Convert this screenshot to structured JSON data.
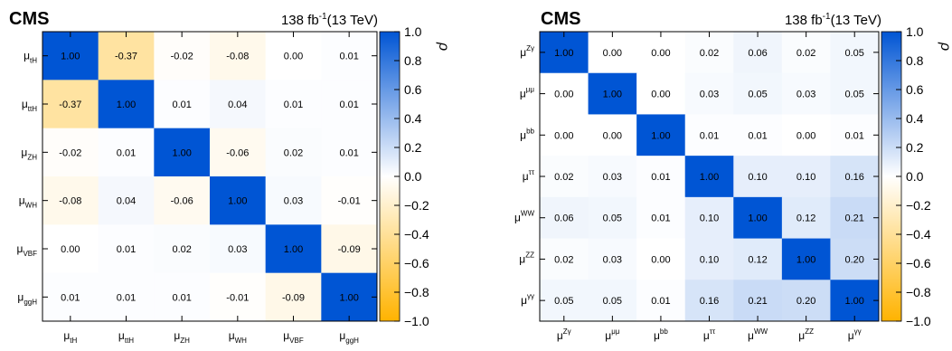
{
  "colors": {
    "positive": "#0055d4",
    "neutral": "#ffffff",
    "negative": "#ffb300",
    "frame": "#000000"
  },
  "chart_data": [
    {
      "type": "heatmap",
      "title": "CMS",
      "luminosity": "138 fb",
      "luminosity_exp": "-1",
      "energy": "(13 TeV)",
      "colorbar_label": "ρ",
      "zlim": [
        -1.0,
        1.0
      ],
      "colorbar_ticks": [
        "1.0",
        "0.8",
        "0.6",
        "0.4",
        "0.2",
        "0.0",
        "−0.2",
        "−0.4",
        "−0.6",
        "−0.8",
        "−1.0"
      ],
      "row_labels": [
        {
          "base": "μ",
          "sub": "tH",
          "sup": ""
        },
        {
          "base": "μ",
          "sub": "ttH",
          "sup": ""
        },
        {
          "base": "μ",
          "sub": "ZH",
          "sup": ""
        },
        {
          "base": "μ",
          "sub": "WH",
          "sup": ""
        },
        {
          "base": "μ",
          "sub": "VBF",
          "sup": ""
        },
        {
          "base": "μ",
          "sub": "ggH",
          "sup": ""
        }
      ],
      "col_labels": [
        {
          "base": "μ",
          "sub": "tH",
          "sup": ""
        },
        {
          "base": "μ",
          "sub": "ttH",
          "sup": ""
        },
        {
          "base": "μ",
          "sub": "ZH",
          "sup": ""
        },
        {
          "base": "μ",
          "sub": "WH",
          "sup": ""
        },
        {
          "base": "μ",
          "sub": "VBF",
          "sup": ""
        },
        {
          "base": "μ",
          "sub": "ggH",
          "sup": ""
        }
      ],
      "values": [
        [
          1.0,
          -0.37,
          -0.02,
          -0.08,
          0.0,
          0.01
        ],
        [
          -0.37,
          1.0,
          0.01,
          0.04,
          0.01,
          0.01
        ],
        [
          -0.02,
          0.01,
          1.0,
          -0.06,
          0.02,
          0.01
        ],
        [
          -0.08,
          0.04,
          -0.06,
          1.0,
          0.03,
          -0.01
        ],
        [
          0.0,
          0.01,
          0.02,
          0.03,
          1.0,
          -0.09
        ],
        [
          0.01,
          0.01,
          0.01,
          -0.01,
          -0.09,
          1.0
        ]
      ]
    },
    {
      "type": "heatmap",
      "title": "CMS",
      "luminosity": "138 fb",
      "luminosity_exp": "-1",
      "energy": "(13 TeV)",
      "colorbar_label": "ρ",
      "zlim": [
        -1.0,
        1.0
      ],
      "colorbar_ticks": [
        "1.0",
        "0.8",
        "0.6",
        "0.4",
        "0.2",
        "0.0",
        "−0.2",
        "−0.4",
        "−0.6",
        "−0.8",
        "−1.0"
      ],
      "row_labels": [
        {
          "base": "μ",
          "sub": "",
          "sup": "Zγ"
        },
        {
          "base": "μ",
          "sub": "",
          "sup": "μμ"
        },
        {
          "base": "μ",
          "sub": "",
          "sup": "bb"
        },
        {
          "base": "μ",
          "sub": "",
          "sup": "ττ"
        },
        {
          "base": "μ",
          "sub": "",
          "sup": "WW"
        },
        {
          "base": "μ",
          "sub": "",
          "sup": "ZZ"
        },
        {
          "base": "μ",
          "sub": "",
          "sup": "γγ"
        }
      ],
      "col_labels": [
        {
          "base": "μ",
          "sub": "",
          "sup": "Zγ"
        },
        {
          "base": "μ",
          "sub": "",
          "sup": "μμ"
        },
        {
          "base": "μ",
          "sub": "",
          "sup": "bb"
        },
        {
          "base": "μ",
          "sub": "",
          "sup": "ττ"
        },
        {
          "base": "μ",
          "sub": "",
          "sup": "WW"
        },
        {
          "base": "μ",
          "sub": "",
          "sup": "ZZ"
        },
        {
          "base": "μ",
          "sub": "",
          "sup": "γγ"
        }
      ],
      "values": [
        [
          1.0,
          0.0,
          0.0,
          0.02,
          0.06,
          0.02,
          0.05
        ],
        [
          0.0,
          1.0,
          0.0,
          0.03,
          0.05,
          0.03,
          0.05
        ],
        [
          0.0,
          0.0,
          1.0,
          0.01,
          0.01,
          0.0,
          0.01
        ],
        [
          0.02,
          0.03,
          0.01,
          1.0,
          0.1,
          0.1,
          0.16
        ],
        [
          0.06,
          0.05,
          0.01,
          0.1,
          1.0,
          0.12,
          0.21
        ],
        [
          0.02,
          0.03,
          0.0,
          0.1,
          0.12,
          1.0,
          0.2
        ],
        [
          0.05,
          0.05,
          0.01,
          0.16,
          0.21,
          0.2,
          1.0
        ]
      ]
    }
  ]
}
